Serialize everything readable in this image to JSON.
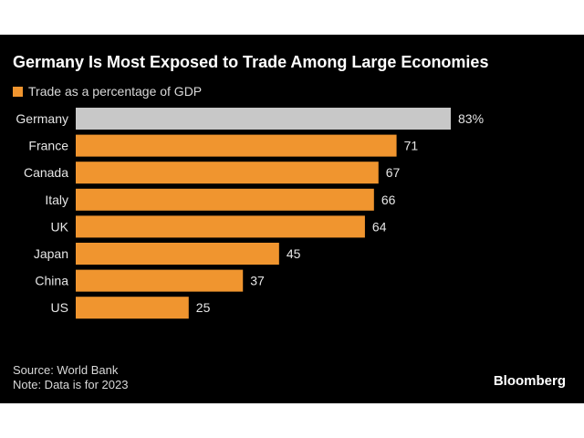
{
  "chart_data": {
    "type": "bar",
    "orientation": "horizontal",
    "title": "Germany Is Most Exposed to Trade Among Large Economies",
    "legend": "Trade as a percentage of GDP",
    "categories": [
      "Germany",
      "France",
      "Canada",
      "Italy",
      "UK",
      "Japan",
      "China",
      "US"
    ],
    "values": [
      83,
      71,
      67,
      66,
      64,
      45,
      37,
      25
    ],
    "value_labels": [
      "83%",
      "71",
      "67",
      "66",
      "64",
      "45",
      "37",
      "25"
    ],
    "highlight": "Germany",
    "colors": {
      "bar": "#f0952f",
      "highlight": "#c8c8c8",
      "background": "#000000"
    },
    "xlim": [
      0,
      83
    ],
    "grid": false
  },
  "footer": {
    "source": "Source: World Bank",
    "note": "Note: Data is for 2023"
  },
  "brand": "Bloomberg"
}
